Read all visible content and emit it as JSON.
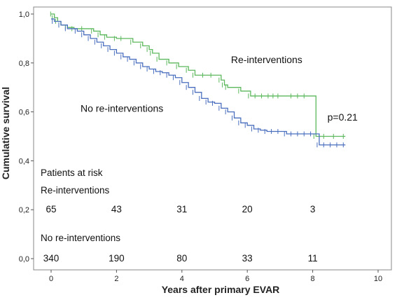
{
  "chart_data": {
    "type": "line",
    "title": "",
    "xlabel": "Years after primary EVAR",
    "ylabel": "Cumulative survival",
    "xlim": [
      0,
      10
    ],
    "ylim": [
      0,
      1.0
    ],
    "x_ticks": [
      "0",
      "2",
      "4",
      "6",
      "8",
      "10"
    ],
    "y_ticks": [
      "0,0",
      "0,2",
      "0,4",
      "0,6",
      "0,8",
      "1,0"
    ],
    "grid": false,
    "series": [
      {
        "name": "Re-interventions",
        "color": "#5cb85c",
        "x": [
          0,
          0.05,
          0.1,
          0.2,
          0.3,
          0.5,
          0.7,
          1.0,
          1.3,
          1.5,
          1.7,
          2.0,
          2.2,
          2.5,
          2.8,
          3.0,
          3.1,
          3.3,
          3.6,
          3.9,
          4.2,
          4.4,
          4.7,
          4.95,
          5.2,
          5.3,
          5.4,
          5.8,
          6.1,
          6.3,
          6.5,
          6.7,
          6.85,
          7.0,
          7.4,
          7.6,
          7.8,
          8.1,
          8.4,
          8.7,
          9.0
        ],
        "y": [
          1.0,
          1.0,
          0.985,
          0.97,
          0.955,
          0.945,
          0.94,
          0.94,
          0.93,
          0.915,
          0.905,
          0.9,
          0.9,
          0.885,
          0.87,
          0.855,
          0.84,
          0.815,
          0.8,
          0.785,
          0.77,
          0.75,
          0.75,
          0.75,
          0.73,
          0.71,
          0.7,
          0.685,
          0.665,
          0.665,
          0.665,
          0.665,
          0.665,
          0.665,
          0.665,
          0.665,
          0.665,
          0.5,
          0.5,
          0.5,
          0.5
        ]
      },
      {
        "name": "No re-interventions",
        "color": "#4a6fbf",
        "x": [
          0,
          0.1,
          0.3,
          0.5,
          0.8,
          1.0,
          1.2,
          1.4,
          1.6,
          1.8,
          2.0,
          2.2,
          2.4,
          2.6,
          2.8,
          3.0,
          3.2,
          3.4,
          3.6,
          3.8,
          4.0,
          4.2,
          4.4,
          4.6,
          4.8,
          5.0,
          5.2,
          5.4,
          5.6,
          5.8,
          6.0,
          6.2,
          6.4,
          6.6,
          6.8,
          7.0,
          7.2,
          7.4,
          7.6,
          7.8,
          8.0,
          8.2,
          8.4,
          8.6,
          8.8,
          9.0
        ],
        "y": [
          0.98,
          0.97,
          0.955,
          0.94,
          0.93,
          0.915,
          0.9,
          0.885,
          0.87,
          0.855,
          0.84,
          0.825,
          0.815,
          0.8,
          0.785,
          0.775,
          0.765,
          0.76,
          0.75,
          0.74,
          0.72,
          0.7,
          0.68,
          0.655,
          0.64,
          0.635,
          0.615,
          0.6,
          0.575,
          0.555,
          0.545,
          0.53,
          0.525,
          0.52,
          0.52,
          0.52,
          0.51,
          0.51,
          0.51,
          0.51,
          0.51,
          0.465,
          0.465,
          0.465,
          0.465,
          0.465
        ]
      }
    ],
    "annotations": [
      {
        "text": "Re-interventions",
        "x": 5.5,
        "y": 0.8
      },
      {
        "text": "No re-interventions",
        "x": 0.9,
        "y": 0.6
      },
      {
        "text": "p=0.21",
        "x": 8.45,
        "y": 0.565
      }
    ],
    "risk_table": {
      "title": "Patients at risk",
      "groups": [
        {
          "label": "Re-interventions",
          "values": [
            "65",
            "43",
            "31",
            "20",
            "3"
          ],
          "y": 0.2
        },
        {
          "label": "No re-interventions",
          "values": [
            "340",
            "190",
            "80",
            "33",
            "11"
          ],
          "y": 0.0
        }
      ]
    }
  }
}
